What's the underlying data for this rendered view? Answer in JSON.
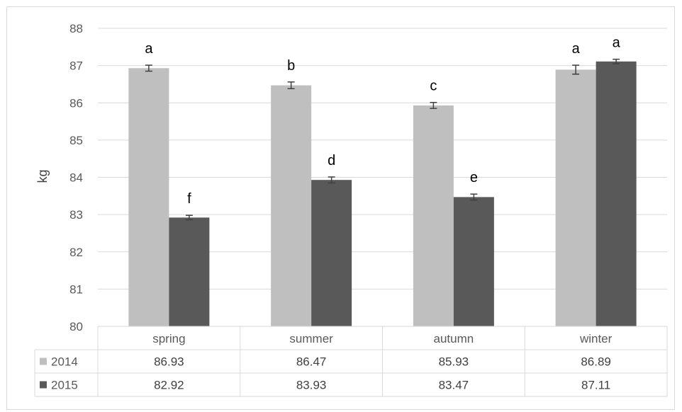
{
  "chart_data": {
    "type": "bar",
    "categories": [
      "spring",
      "summer",
      "autumn",
      "winter"
    ],
    "series": [
      {
        "name": "2014",
        "values": [
          86.93,
          86.47,
          85.93,
          86.89
        ],
        "labels": [
          "86.93",
          "86.47",
          "85.93",
          "86.89"
        ],
        "errors": [
          0.08,
          0.09,
          0.08,
          0.12
        ],
        "significance": [
          "a",
          "b",
          "c",
          "a"
        ],
        "color": "#bfbfbf"
      },
      {
        "name": "2015",
        "values": [
          82.92,
          83.93,
          83.47,
          87.11
        ],
        "labels": [
          "82.92",
          "83.93",
          "83.47",
          "87.11"
        ],
        "errors": [
          0.06,
          0.08,
          0.08,
          0.06
        ],
        "significance": [
          "f",
          "d",
          "e",
          "a"
        ],
        "color": "#595959"
      }
    ],
    "title": "",
    "xlabel": "",
    "ylabel": "kg",
    "ylim": [
      80,
      88
    ],
    "yticks": [
      "80",
      "81",
      "82",
      "83",
      "84",
      "85",
      "86",
      "87",
      "88"
    ],
    "grid": true,
    "legend": "data-table",
    "data_table": true,
    "colors": {
      "gridline": "#d9d9d9",
      "axis_text": "#595959",
      "error_bar": "#404040"
    }
  }
}
